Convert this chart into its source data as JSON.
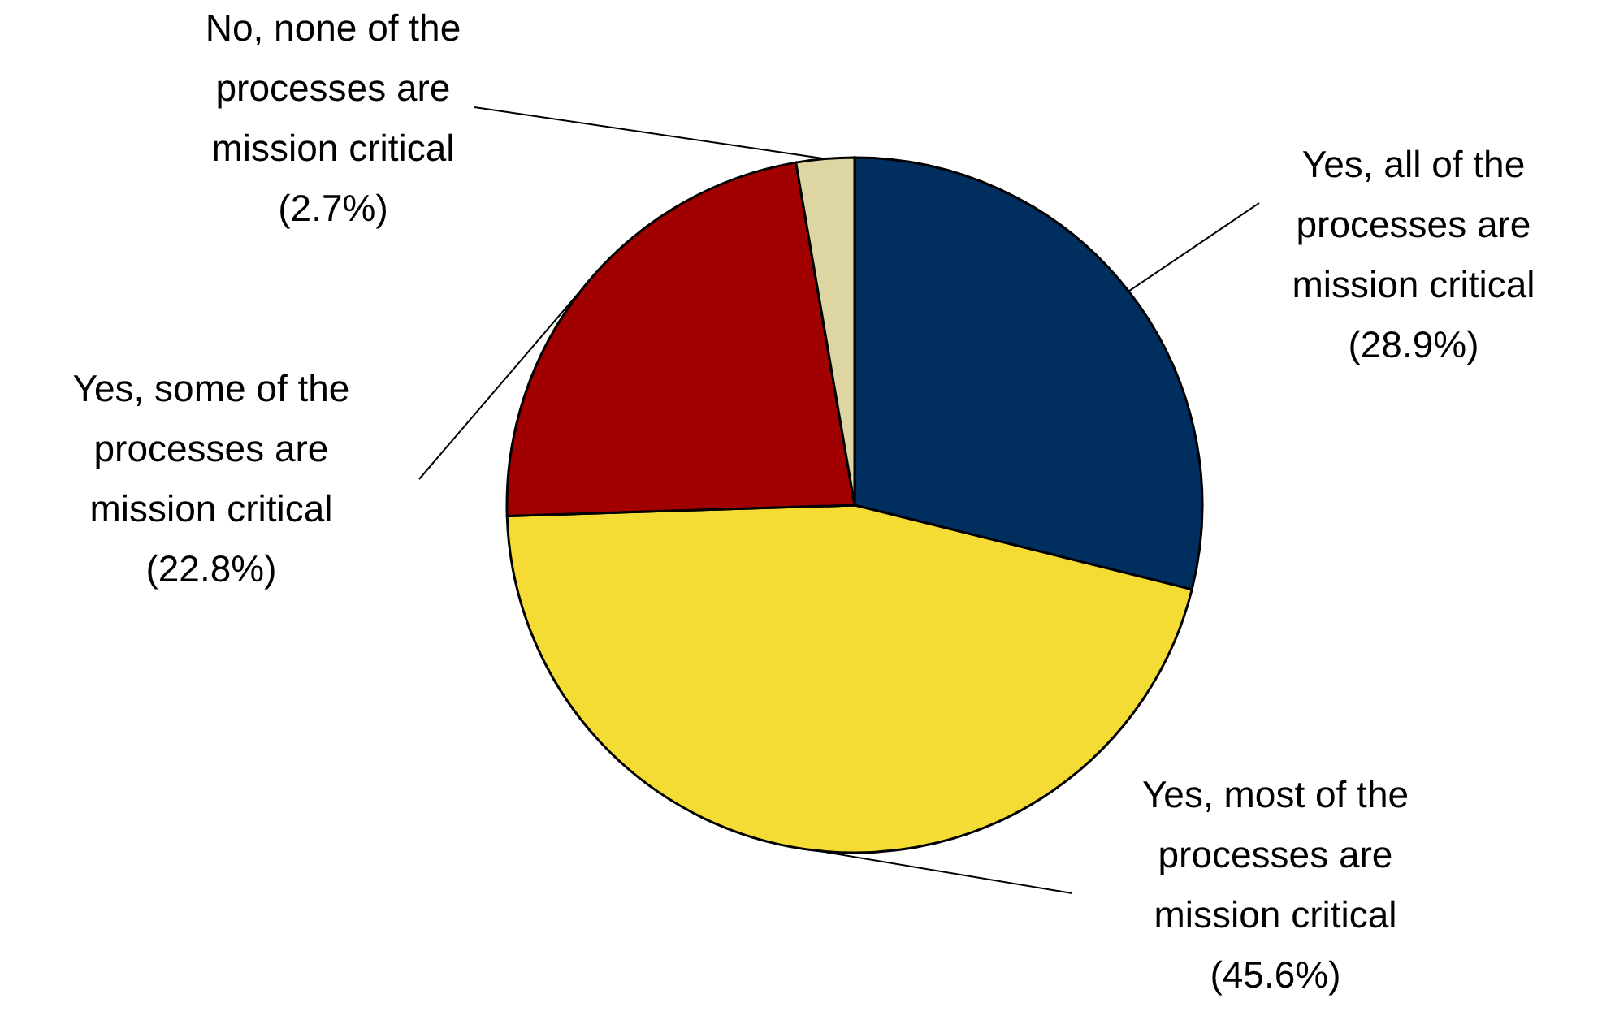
{
  "chart_data": {
    "type": "pie",
    "categories": [
      "Yes, all of the processes are mission critical",
      "Yes, most of the processes are mission critical",
      "Yes, some of the processes are mission critical",
      "No, none of the processes are mission critical"
    ],
    "values": [
      28.9,
      45.6,
      22.8,
      2.7
    ],
    "colors": [
      "#002f5f",
      "#f5dc34",
      "#a00000",
      "#ddd5a2"
    ],
    "value_labels": [
      "(28.9%)",
      "(45.6%)",
      "(22.8%)",
      "(2.7%)"
    ]
  }
}
